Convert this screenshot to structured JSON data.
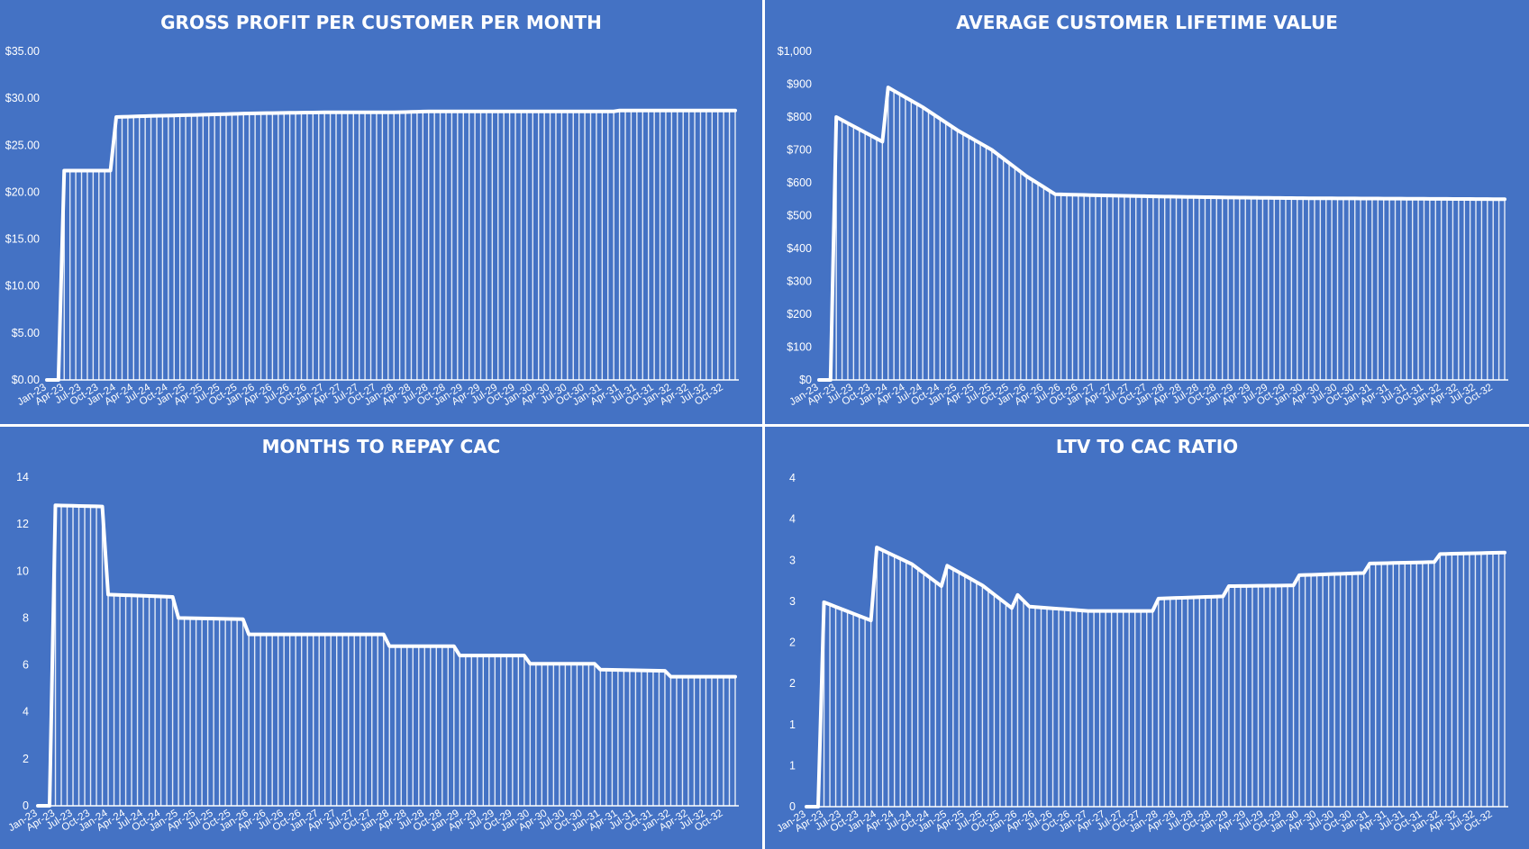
{
  "dashboard": {
    "background": "#4472C4",
    "line_color": "#FFFFFF"
  },
  "chart_data": [
    {
      "type": "area",
      "title": "GROSS PROFIT PER CUSTOMER PER MONTH",
      "xlabel": "",
      "ylabel": "",
      "ylim": [
        0,
        35
      ],
      "y_ticks": [
        "$0.00",
        "$5.00",
        "$10.00",
        "$15.00",
        "$20.00",
        "$25.00",
        "$30.00",
        "$35.00"
      ],
      "x_tick_labels": [
        "Jan-23",
        "Apr-23",
        "Jul-23",
        "Oct-23",
        "Jan-24",
        "Apr-24",
        "Jul-24",
        "Oct-24",
        "Jan-25",
        "Apr-25",
        "Jul-25",
        "Oct-25",
        "Jan-26",
        "Apr-26",
        "Jul-26",
        "Oct-26",
        "Jan-27",
        "Apr-27",
        "Jul-27",
        "Oct-27",
        "Jan-28",
        "Apr-28",
        "Jul-28",
        "Oct-28",
        "Jan-29",
        "Apr-29",
        "Jul-29",
        "Oct-29",
        "Jan-30",
        "Apr-30",
        "Jul-30",
        "Oct-30",
        "Jan-31",
        "Apr-31",
        "Jul-31",
        "Oct-31",
        "Jan-32",
        "Apr-32",
        "Jul-32",
        "Oct-32"
      ],
      "grid": false,
      "legend": "none",
      "series": [
        {
          "keypoints": [
            [
              "Jan-23",
              0
            ],
            [
              "Mar-23",
              0
            ],
            [
              "Apr-23",
              22.3
            ],
            [
              "Dec-23",
              22.3
            ],
            [
              "Jan-24",
              28.0
            ],
            [
              "Jun-24",
              28.1
            ],
            [
              "Jan-25",
              28.2
            ],
            [
              "Jul-25",
              28.3
            ],
            [
              "Jan-26",
              28.4
            ],
            [
              "Jan-27",
              28.5
            ],
            [
              "Jan-28",
              28.5
            ],
            [
              "Jul-28",
              28.6
            ],
            [
              "Jan-30",
              28.6
            ],
            [
              "Mar-31",
              28.6
            ],
            [
              "Apr-31",
              28.7
            ],
            [
              "Dec-32",
              28.7
            ]
          ]
        }
      ]
    },
    {
      "type": "area",
      "title": "AVERAGE CUSTOMER LIFETIME VALUE",
      "xlabel": "",
      "ylabel": "",
      "ylim": [
        0,
        1000
      ],
      "y_ticks": [
        "$0",
        "$100",
        "$200",
        "$300",
        "$400",
        "$500",
        "$600",
        "$700",
        "$800",
        "$900",
        "$1,000"
      ],
      "x_tick_labels": [
        "Jan-23",
        "Apr-23",
        "Jul-23",
        "Oct-23",
        "Jan-24",
        "Apr-24",
        "Jul-24",
        "Oct-24",
        "Jan-25",
        "Apr-25",
        "Jul-25",
        "Oct-25",
        "Jan-26",
        "Apr-26",
        "Jul-26",
        "Oct-26",
        "Jan-27",
        "Apr-27",
        "Jul-27",
        "Oct-27",
        "Jan-28",
        "Apr-28",
        "Jul-28",
        "Oct-28",
        "Jan-29",
        "Apr-29",
        "Jul-29",
        "Oct-29",
        "Jan-30",
        "Apr-30",
        "Jul-30",
        "Oct-30",
        "Jan-31",
        "Apr-31",
        "Jul-31",
        "Oct-31",
        "Jan-32",
        "Apr-32",
        "Jul-32",
        "Oct-32"
      ],
      "grid": false,
      "legend": "none",
      "series": [
        {
          "keypoints": [
            [
              "Jan-23",
              0
            ],
            [
              "Mar-23",
              0
            ],
            [
              "Apr-23",
              800
            ],
            [
              "Dec-23",
              725
            ],
            [
              "Jan-24",
              890
            ],
            [
              "Jul-24",
              830
            ],
            [
              "Jan-25",
              760
            ],
            [
              "Jul-25",
              700
            ],
            [
              "Jan-26",
              620
            ],
            [
              "Jun-26",
              565
            ],
            [
              "Jan-27",
              562
            ],
            [
              "Jan-28",
              558
            ],
            [
              "Jan-29",
              555
            ],
            [
              "Jan-30",
              553
            ],
            [
              "Jan-31",
              552
            ],
            [
              "Dec-32",
              550
            ]
          ]
        }
      ]
    },
    {
      "type": "area",
      "title": "MONTHS TO REPAY CAC",
      "xlabel": "",
      "ylabel": "",
      "ylim": [
        0,
        14
      ],
      "y_ticks": [
        "0",
        "2",
        "4",
        "6",
        "8",
        "10",
        "12",
        "14"
      ],
      "x_tick_labels": [
        "Jan-23",
        "Apr-23",
        "Jul-23",
        "Oct-23",
        "Jan-24",
        "Apr-24",
        "Jul-24",
        "Oct-24",
        "Jan-25",
        "Apr-25",
        "Jul-25",
        "Oct-25",
        "Jan-26",
        "Apr-26",
        "Jul-26",
        "Oct-26",
        "Jan-27",
        "Apr-27",
        "Jul-27",
        "Oct-27",
        "Jan-28",
        "Apr-28",
        "Jul-28",
        "Oct-28",
        "Jan-29",
        "Apr-29",
        "Jul-29",
        "Oct-29",
        "Jan-30",
        "Apr-30",
        "Jul-30",
        "Oct-30",
        "Jan-31",
        "Apr-31",
        "Jul-31",
        "Oct-31",
        "Jan-32",
        "Apr-32",
        "Jul-32",
        "Oct-32"
      ],
      "grid": false,
      "legend": "none",
      "series": [
        {
          "keypoints": [
            [
              "Jan-23",
              0
            ],
            [
              "Mar-23",
              0
            ],
            [
              "Apr-23",
              12.8
            ],
            [
              "Dec-23",
              12.75
            ],
            [
              "Jan-24",
              9.0
            ],
            [
              "Dec-24",
              8.9
            ],
            [
              "Jan-25",
              8.0
            ],
            [
              "Dec-25",
              7.95
            ],
            [
              "Jan-26",
              7.3
            ],
            [
              "Dec-26",
              7.3
            ],
            [
              "Jan-27",
              7.3
            ],
            [
              "Dec-27",
              7.3
            ],
            [
              "Jan-28",
              6.8
            ],
            [
              "Dec-28",
              6.8
            ],
            [
              "Jan-29",
              6.4
            ],
            [
              "Dec-29",
              6.4
            ],
            [
              "Jan-30",
              6.05
            ],
            [
              "Dec-30",
              6.05
            ],
            [
              "Jan-31",
              5.8
            ],
            [
              "Dec-31",
              5.75
            ],
            [
              "Jan-32",
              5.5
            ],
            [
              "Dec-32",
              5.5
            ]
          ]
        }
      ]
    },
    {
      "type": "area",
      "title": "LTV TO CAC RATIO",
      "xlabel": "",
      "ylabel": "",
      "ylim": [
        0,
        4.5
      ],
      "y_ticks": [
        "0",
        "1",
        "1",
        "2",
        "2",
        "3",
        "3",
        "4",
        "4"
      ],
      "x_tick_labels": [
        "Jan-23",
        "Apr-23",
        "Jul-23",
        "Oct-23",
        "Jan-24",
        "Apr-24",
        "Jul-24",
        "Oct-24",
        "Jan-25",
        "Apr-25",
        "Jul-25",
        "Oct-25",
        "Jan-26",
        "Apr-26",
        "Jul-26",
        "Oct-26",
        "Jan-27",
        "Apr-27",
        "Jul-27",
        "Oct-27",
        "Jan-28",
        "Apr-28",
        "Jul-28",
        "Oct-28",
        "Jan-29",
        "Apr-29",
        "Jul-29",
        "Oct-29",
        "Jan-30",
        "Apr-30",
        "Jul-30",
        "Oct-30",
        "Jan-31",
        "Apr-31",
        "Jul-31",
        "Oct-31",
        "Jan-32",
        "Apr-32",
        "Jul-32",
        "Oct-32"
      ],
      "grid": false,
      "legend": "none",
      "series": [
        {
          "keypoints": [
            [
              "Jan-23",
              0
            ],
            [
              "Mar-23",
              0
            ],
            [
              "Apr-23",
              2.8
            ],
            [
              "Dec-23",
              2.55
            ],
            [
              "Jan-24",
              3.55
            ],
            [
              "Jul-24",
              3.32
            ],
            [
              "Dec-24",
              3.02
            ],
            [
              "Jan-25",
              3.3
            ],
            [
              "Jul-25",
              3.03
            ],
            [
              "Dec-25",
              2.72
            ],
            [
              "Jan-26",
              2.9
            ],
            [
              "Mar-26",
              2.74
            ],
            [
              "Jan-27",
              2.68
            ],
            [
              "Dec-27",
              2.68
            ],
            [
              "Jan-28",
              2.85
            ],
            [
              "Dec-28",
              2.88
            ],
            [
              "Jan-29",
              3.02
            ],
            [
              "Dec-29",
              3.03
            ],
            [
              "Jan-30",
              3.17
            ],
            [
              "Dec-30",
              3.2
            ],
            [
              "Jan-31",
              3.33
            ],
            [
              "Dec-31",
              3.35
            ],
            [
              "Jan-32",
              3.46
            ],
            [
              "Dec-32",
              3.48
            ]
          ]
        }
      ]
    }
  ]
}
